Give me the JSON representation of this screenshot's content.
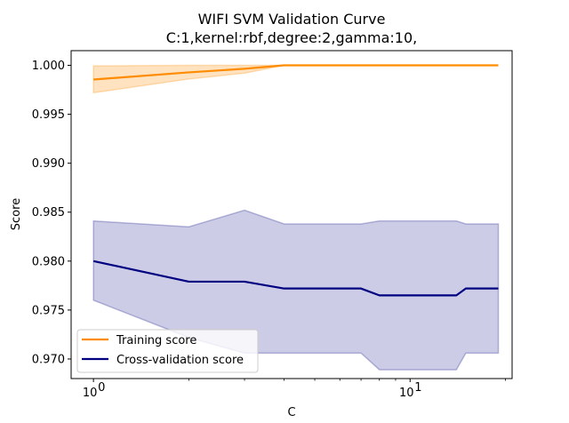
{
  "chart_data": {
    "type": "line",
    "title": "WIFI SVM Validation Curve",
    "subtitle": "C:1,kernel:rbf,degree:2,gamma:10,",
    "xlabel": "C",
    "ylabel": "Score",
    "xscale": "log",
    "xlim": [
      0.85,
      21
    ],
    "ylim": [
      0.968,
      1.0015
    ],
    "yticks": [
      "0.970",
      "0.975",
      "0.980",
      "0.985",
      "0.990",
      "0.995",
      "1.000"
    ],
    "xticks": [
      {
        "value": 1,
        "label": "10",
        "sup": "0"
      },
      {
        "value": 10,
        "label": "10",
        "sup": "1"
      }
    ],
    "grid": false,
    "legend_position": "lower-left",
    "x": [
      1,
      2,
      3,
      4,
      5,
      6,
      7,
      8,
      9,
      10,
      11,
      12,
      13,
      14,
      15,
      16,
      17,
      18,
      19
    ],
    "series": [
      {
        "name": "Training score",
        "color": "#ff8c00",
        "values": [
          0.99855,
          0.99928,
          0.99965,
          1.0,
          1.0,
          1.0,
          1.0,
          1.0,
          1.0,
          1.0,
          1.0,
          1.0,
          1.0,
          1.0,
          1.0,
          1.0,
          1.0,
          1.0,
          1.0
        ],
        "band_lower": [
          0.9972,
          0.9986,
          0.9992,
          1.0,
          1.0,
          1.0,
          1.0,
          1.0,
          1.0,
          1.0,
          1.0,
          1.0,
          1.0,
          1.0,
          1.0,
          1.0,
          1.0,
          1.0,
          1.0
        ],
        "band_upper": [
          0.99995,
          1.0,
          1.0,
          1.0,
          1.0,
          1.0,
          1.0,
          1.0,
          1.0,
          1.0,
          1.0,
          1.0,
          1.0,
          1.0,
          1.0,
          1.0,
          1.0,
          1.0,
          1.0
        ]
      },
      {
        "name": "Cross-validation score",
        "color": "#000080",
        "values": [
          0.98,
          0.9779,
          0.9779,
          0.9772,
          0.9772,
          0.9772,
          0.9772,
          0.9765,
          0.9765,
          0.9765,
          0.9765,
          0.9765,
          0.9765,
          0.9765,
          0.9772,
          0.9772,
          0.9772,
          0.9772,
          0.9772
        ],
        "band_lower": [
          0.976,
          0.9722,
          0.9706,
          0.9706,
          0.9706,
          0.9706,
          0.9706,
          0.9689,
          0.9689,
          0.9689,
          0.9689,
          0.9689,
          0.9689,
          0.9689,
          0.9706,
          0.9706,
          0.9706,
          0.9706,
          0.9706
        ],
        "band_upper": [
          0.9841,
          0.9835,
          0.9852,
          0.9838,
          0.9838,
          0.9838,
          0.9838,
          0.9841,
          0.9841,
          0.9841,
          0.9841,
          0.9841,
          0.9841,
          0.9841,
          0.9838,
          0.9838,
          0.9838,
          0.9838,
          0.9838
        ]
      }
    ]
  }
}
